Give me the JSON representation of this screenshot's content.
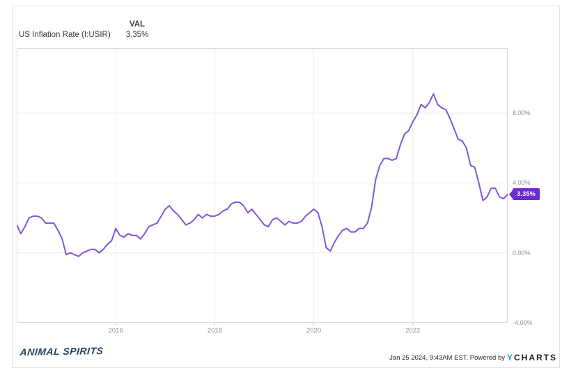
{
  "header": {
    "series_label": "US Inflation Rate (I:USIR)",
    "value_column_label": "VAL",
    "value": "3.35%"
  },
  "chart_data": {
    "type": "line",
    "title": "US Inflation Rate (I:USIR)",
    "series_name": "US Inflation Rate",
    "unit": "percent",
    "frequency": "monthly",
    "start_year": 2014,
    "x_start": "2014-01",
    "x_end": "2023-12",
    "values": [
      1.6,
      1.1,
      1.5,
      2.0,
      2.1,
      2.1,
      2.0,
      1.7,
      1.7,
      1.7,
      1.3,
      0.8,
      -0.1,
      0.0,
      -0.1,
      -0.2,
      0.0,
      0.1,
      0.2,
      0.2,
      0.0,
      0.2,
      0.5,
      0.7,
      1.4,
      1.0,
      0.9,
      1.1,
      1.0,
      1.0,
      0.8,
      1.1,
      1.5,
      1.6,
      1.7,
      2.1,
      2.5,
      2.7,
      2.4,
      2.2,
      1.9,
      1.6,
      1.7,
      1.9,
      2.2,
      2.0,
      2.2,
      2.1,
      2.1,
      2.2,
      2.4,
      2.5,
      2.8,
      2.9,
      2.9,
      2.7,
      2.3,
      2.5,
      2.2,
      1.9,
      1.6,
      1.5,
      1.9,
      2.0,
      1.8,
      1.6,
      1.8,
      1.7,
      1.7,
      1.8,
      2.1,
      2.3,
      2.5,
      2.3,
      1.5,
      0.3,
      0.1,
      0.6,
      1.0,
      1.3,
      1.4,
      1.2,
      1.2,
      1.4,
      1.4,
      1.7,
      2.6,
      4.2,
      5.0,
      5.4,
      5.4,
      5.3,
      5.4,
      6.2,
      6.8,
      7.0,
      7.5,
      7.9,
      8.5,
      8.3,
      8.6,
      9.1,
      8.5,
      8.3,
      8.2,
      7.7,
      7.1,
      6.5,
      6.4,
      6.0,
      5.0,
      4.9,
      4.0,
      3.0,
      3.2,
      3.7,
      3.7,
      3.2,
      3.1,
      3.35
    ],
    "last_value": 3.35,
    "last_value_label": "3.35%",
    "ylim": [
      -4,
      11.72
    ],
    "grid": true,
    "legend_position": "none",
    "y_axis_side": "right",
    "y_ticks": [
      {
        "value": 8,
        "label": "8.00%"
      },
      {
        "value": 4,
        "label": "4.00%"
      },
      {
        "value": 0,
        "label": "0.00%"
      },
      {
        "value": -4,
        "label": "-4.00%"
      }
    ],
    "x_ticks": [
      {
        "year": 2016,
        "label": "2016"
      },
      {
        "year": 2018,
        "label": "2018"
      },
      {
        "year": 2020,
        "label": "2020"
      },
      {
        "year": 2022,
        "label": "2022"
      }
    ],
    "line_color": "#7d57d8",
    "badge_color": "#6c2bd4",
    "grid_color": "#ececec",
    "border_color": "#dadada"
  },
  "footer": {
    "logo_text": "ANIMAL SPIRITS",
    "timestamp": "Jan 25 2024, 9:43AM EST. Powered by",
    "brand_y": "Y",
    "brand_rest": "CHARTS"
  }
}
